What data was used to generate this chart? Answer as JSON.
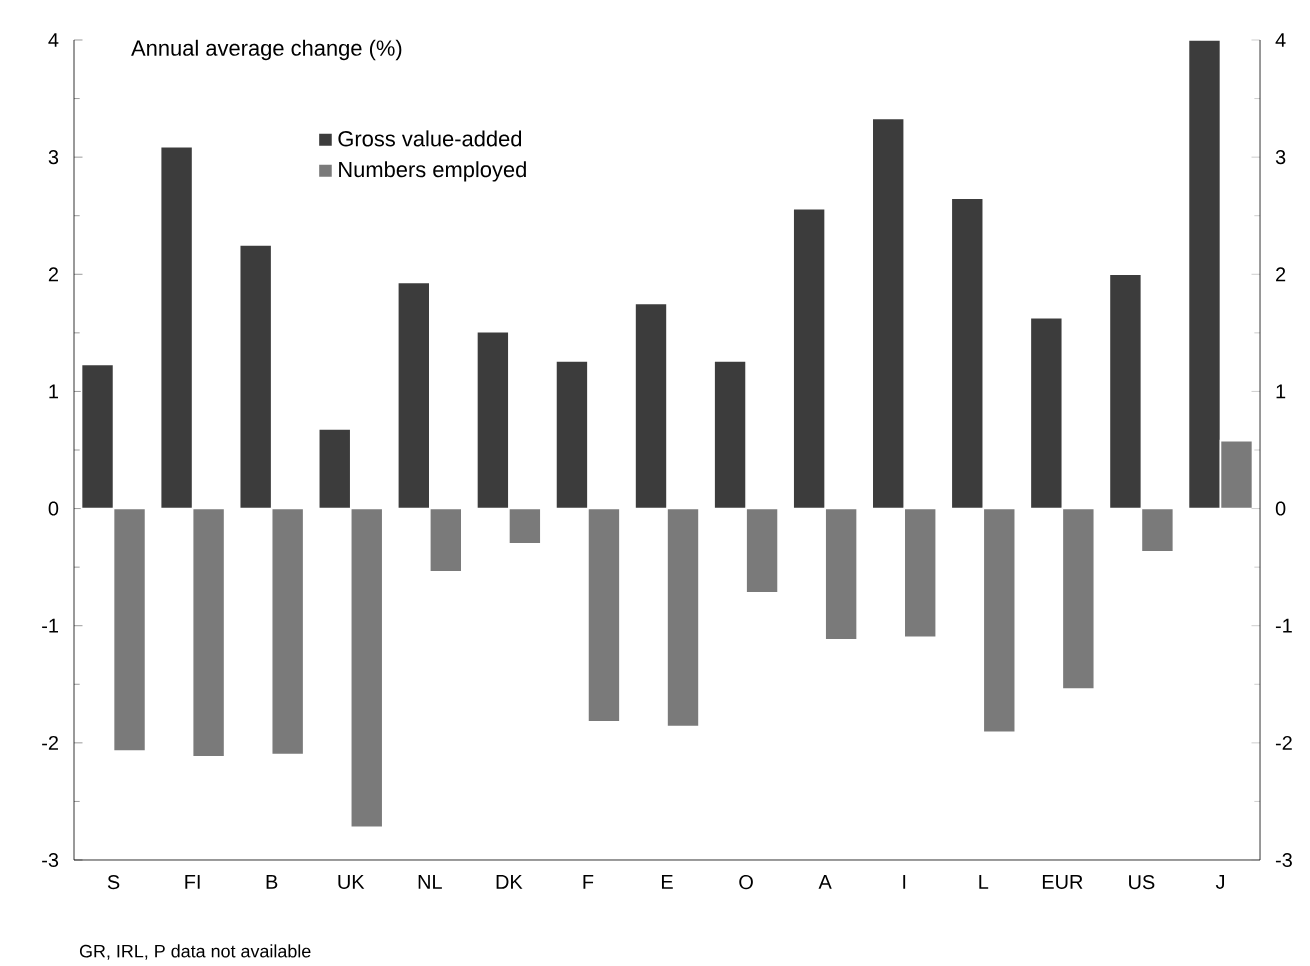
{
  "chart_data": {
    "type": "bar",
    "ylabel": "Annual average change (%)",
    "categories": [
      "S",
      "FI",
      "B",
      "UK",
      "NL",
      "DK",
      "F",
      "E",
      "O",
      "A",
      "I",
      "L",
      "EUR",
      "US",
      "J"
    ],
    "series": [
      {
        "name": "Gross value-added",
        "color": "#3c3c3c",
        "values": [
          1.23,
          3.09,
          2.25,
          0.68,
          1.93,
          1.51,
          1.26,
          1.75,
          1.26,
          2.56,
          3.33,
          2.65,
          1.63,
          2.0,
          4.0
        ]
      },
      {
        "name": "Numbers employed",
        "color": "#7a7a7a",
        "values": [
          -2.07,
          -2.12,
          -2.1,
          -2.72,
          -0.54,
          -0.3,
          -1.82,
          -1.86,
          -0.72,
          -1.12,
          -1.1,
          -1.91,
          -1.54,
          -0.37,
          0.58
        ]
      }
    ],
    "ylim": [
      -3,
      4
    ],
    "yticks": [
      -3,
      -2,
      -1,
      0,
      1,
      2,
      3,
      4
    ],
    "y2lim": [
      -3,
      4
    ],
    "y2ticks": [
      -3,
      -2,
      -1,
      0,
      1,
      2,
      3,
      4
    ],
    "legend": "top left",
    "grid": false,
    "annotations": [
      "GR, IRL, P data not available"
    ]
  }
}
